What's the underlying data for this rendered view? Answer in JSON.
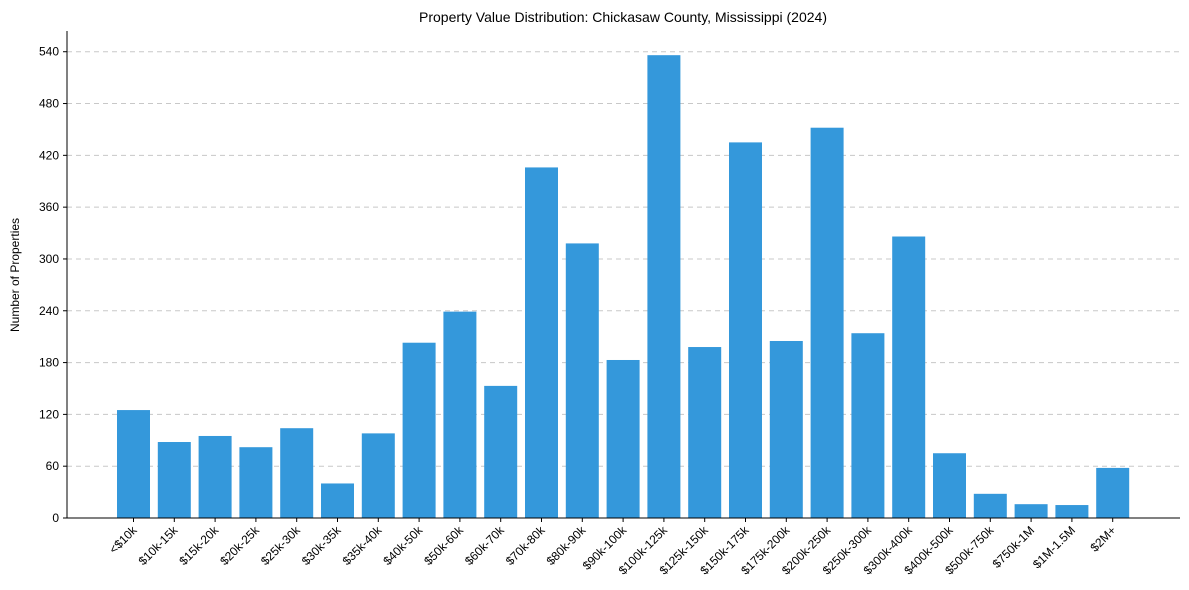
{
  "chart_data": {
    "type": "bar",
    "title": "Property Value Distribution: Chickasaw County, Mississippi (2024)",
    "xlabel": "",
    "ylabel": "Number of Properties",
    "categories": [
      "<$10k",
      "$10k-15k",
      "$15k-20k",
      "$20k-25k",
      "$25k-30k",
      "$30k-35k",
      "$35k-40k",
      "$40k-50k",
      "$50k-60k",
      "$60k-70k",
      "$70k-80k",
      "$80k-90k",
      "$90k-100k",
      "$100k-125k",
      "$125k-150k",
      "$150k-175k",
      "$175k-200k",
      "$200k-250k",
      "$250k-300k",
      "$300k-400k",
      "$400k-500k",
      "$500k-750k",
      "$750k-1M",
      "$1M-1.5M",
      "$2M+"
    ],
    "values": [
      125,
      88,
      95,
      82,
      104,
      40,
      98,
      203,
      239,
      153,
      406,
      318,
      183,
      536,
      198,
      435,
      205,
      452,
      214,
      326,
      75,
      28,
      16,
      15,
      58
    ],
    "yticks": [
      0,
      60,
      120,
      180,
      240,
      300,
      360,
      420,
      480,
      540
    ],
    "ylim": [
      0,
      564
    ],
    "grid": "y-dashed",
    "color": "#3498db"
  }
}
